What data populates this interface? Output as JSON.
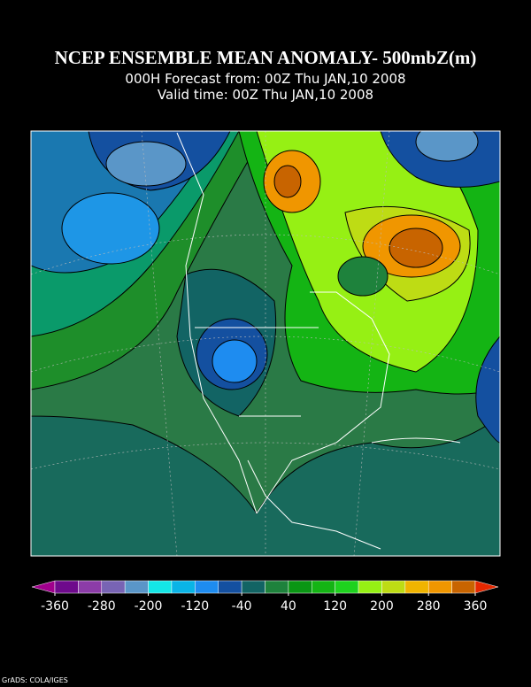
{
  "header": {
    "title": "NCEP ENSEMBLE MEAN ANOMALY- 500mbZ(m)",
    "line1": "000H Forecast from: 00Z Thu JAN,10 2008",
    "line2": "Valid time: 00Z Thu JAN,10 2008"
  },
  "colorbar": {
    "range": [
      -360,
      360
    ],
    "ticks": [
      -360,
      -280,
      -200,
      -120,
      -40,
      40,
      120,
      200,
      280,
      360
    ],
    "colors": [
      "#a0008c",
      "#6e0a8c",
      "#8c3ca8",
      "#7864b4",
      "#5a96c8",
      "#14e6e6",
      "#0ab4e6",
      "#1e8cf0",
      "#1450a0",
      "#126464",
      "#1e823c",
      "#0a9614",
      "#14b414",
      "#1ed21e",
      "#96f014",
      "#bedc14",
      "#f0b400",
      "#f09600",
      "#c86400",
      "#e62800"
    ]
  },
  "footer": "GrADS: COLA/IGES"
}
